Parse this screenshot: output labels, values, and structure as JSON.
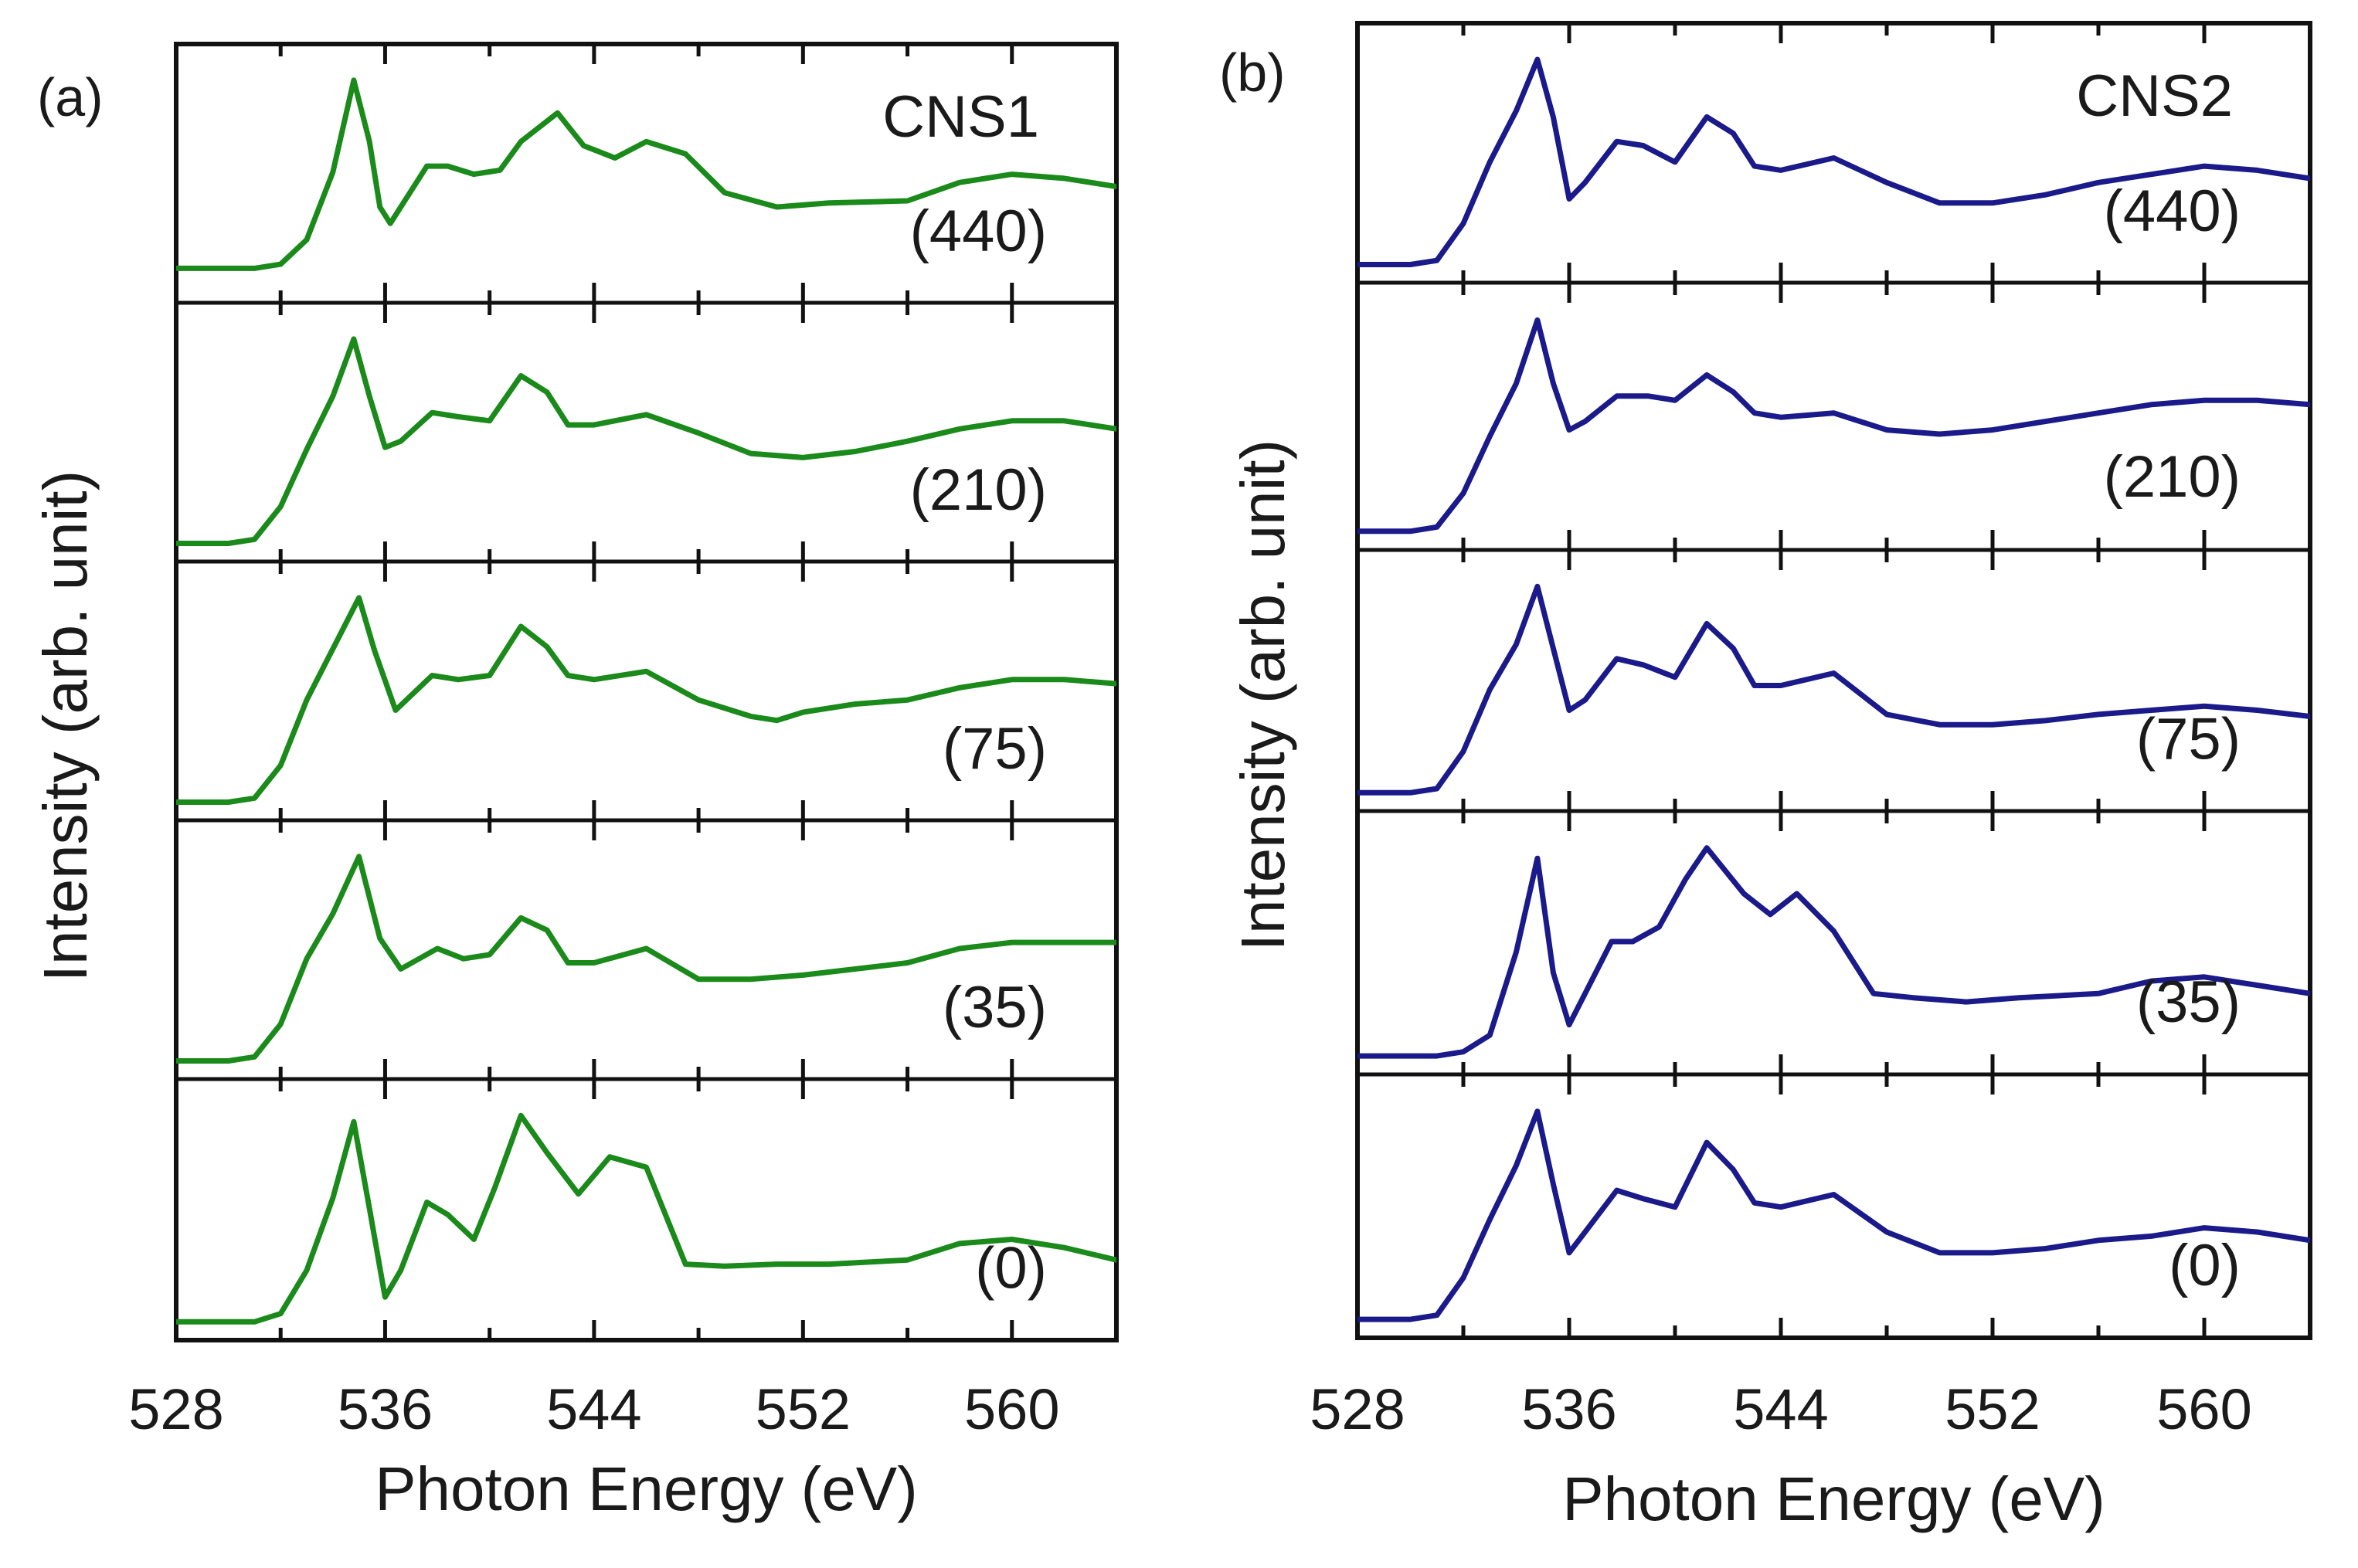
{
  "chart_data": [
    {
      "type": "line",
      "panel_label": "(a)",
      "sample": "CNS1",
      "xlabel": "Photon Energy (eV)",
      "ylabel": "Intensity (arb. unit)",
      "xlim": [
        528,
        564
      ],
      "xticks": [
        528,
        536,
        544,
        552,
        560
      ],
      "minor_tick_step": 4,
      "color": "#1a8a1a",
      "stacked": true,
      "y_normalized": true,
      "series": [
        {
          "name": "(440)",
          "x": [
            528,
            531,
            532,
            533,
            534,
            534.8,
            535.4,
            535.8,
            536.2,
            536.8,
            537.6,
            538.4,
            539.4,
            540.4,
            541.2,
            542.6,
            543.6,
            544.8,
            546,
            547.5,
            549,
            551,
            553,
            556,
            558,
            560,
            562,
            564
          ],
          "y": [
            0.08,
            0.08,
            0.1,
            0.22,
            0.55,
            1.0,
            0.7,
            0.38,
            0.3,
            0.42,
            0.58,
            0.58,
            0.54,
            0.56,
            0.7,
            0.84,
            0.68,
            0.62,
            0.7,
            0.64,
            0.45,
            0.38,
            0.4,
            0.41,
            0.5,
            0.54,
            0.52,
            0.48
          ]
        },
        {
          "name": "(210)",
          "x": [
            528,
            530,
            531,
            532,
            533,
            534,
            534.8,
            535.4,
            536,
            536.6,
            537.8,
            538.8,
            540,
            541.2,
            542.2,
            543,
            544,
            546,
            548,
            550,
            552,
            554,
            556,
            558,
            560,
            562,
            564
          ],
          "y": [
            0.0,
            0.0,
            0.02,
            0.18,
            0.46,
            0.72,
            1.0,
            0.72,
            0.47,
            0.5,
            0.64,
            0.62,
            0.6,
            0.82,
            0.74,
            0.58,
            0.58,
            0.63,
            0.54,
            0.44,
            0.42,
            0.45,
            0.5,
            0.56,
            0.6,
            0.6,
            0.56
          ]
        },
        {
          "name": "(75)",
          "x": [
            528,
            530,
            531,
            532,
            533,
            534,
            535,
            535.6,
            536.4,
            537.8,
            538.8,
            540,
            541.2,
            542.2,
            543,
            544,
            546,
            548,
            550,
            551,
            552,
            554,
            556,
            558,
            560,
            562,
            564
          ],
          "y": [
            0.0,
            0.0,
            0.02,
            0.18,
            0.5,
            0.75,
            1.0,
            0.74,
            0.45,
            0.62,
            0.6,
            0.62,
            0.86,
            0.76,
            0.62,
            0.6,
            0.64,
            0.5,
            0.42,
            0.4,
            0.44,
            0.48,
            0.5,
            0.56,
            0.6,
            0.6,
            0.58
          ]
        },
        {
          "name": "(35)",
          "x": [
            528,
            530,
            531,
            532,
            533,
            534,
            535,
            535.8,
            536.6,
            538,
            539,
            540,
            541.2,
            542.2,
            543,
            544,
            546,
            548,
            550,
            552,
            554,
            556,
            558,
            560,
            562,
            564
          ],
          "y": [
            0.0,
            0.0,
            0.02,
            0.18,
            0.5,
            0.72,
            1.0,
            0.6,
            0.45,
            0.55,
            0.5,
            0.52,
            0.7,
            0.64,
            0.48,
            0.48,
            0.55,
            0.4,
            0.4,
            0.42,
            0.45,
            0.48,
            0.55,
            0.58,
            0.58,
            0.58
          ]
        },
        {
          "name": "(0)",
          "x": [
            528,
            531,
            532,
            533,
            534,
            534.8,
            535.4,
            536,
            536.6,
            537.6,
            538.4,
            539.4,
            540.2,
            541.2,
            542.2,
            543.4,
            544.6,
            546,
            547.5,
            549,
            551,
            553,
            556,
            558,
            560,
            562,
            564
          ],
          "y": [
            0.0,
            0.0,
            0.04,
            0.25,
            0.6,
            0.97,
            0.55,
            0.12,
            0.25,
            0.58,
            0.52,
            0.4,
            0.65,
            1.0,
            0.82,
            0.62,
            0.8,
            0.75,
            0.28,
            0.27,
            0.28,
            0.28,
            0.3,
            0.38,
            0.4,
            0.36,
            0.3
          ]
        }
      ]
    },
    {
      "type": "line",
      "panel_label": "(b)",
      "sample": "CNS2",
      "xlabel": "Photon Energy (eV)",
      "ylabel": "Intensity (arb. unit)",
      "xlim": [
        528,
        564
      ],
      "xticks": [
        528,
        536,
        544,
        552,
        560
      ],
      "minor_tick_step": 4,
      "color": "#1a1a8a",
      "stacked": true,
      "y_normalized": true,
      "series": [
        {
          "name": "(440)",
          "x": [
            528,
            530,
            531,
            532,
            533,
            534,
            534.8,
            535.4,
            536,
            536.6,
            537.8,
            538.8,
            540,
            541.2,
            542.2,
            543,
            544,
            546,
            548,
            550,
            552,
            554,
            556,
            558,
            560,
            562,
            564
          ],
          "y": [
            0.0,
            0.0,
            0.02,
            0.2,
            0.5,
            0.75,
            1.0,
            0.72,
            0.32,
            0.4,
            0.6,
            0.58,
            0.5,
            0.72,
            0.64,
            0.48,
            0.46,
            0.52,
            0.4,
            0.3,
            0.3,
            0.34,
            0.4,
            0.44,
            0.48,
            0.46,
            0.42
          ]
        },
        {
          "name": "(210)",
          "x": [
            528,
            530,
            531,
            532,
            533,
            534,
            534.8,
            535.4,
            536,
            536.6,
            537.8,
            539,
            540,
            541.2,
            542.2,
            543,
            544,
            546,
            548,
            550,
            552,
            554,
            556,
            558,
            560,
            562,
            564
          ],
          "y": [
            0.0,
            0.0,
            0.02,
            0.18,
            0.45,
            0.7,
            1.0,
            0.7,
            0.48,
            0.52,
            0.64,
            0.64,
            0.62,
            0.74,
            0.66,
            0.56,
            0.54,
            0.56,
            0.48,
            0.46,
            0.48,
            0.52,
            0.56,
            0.6,
            0.62,
            0.62,
            0.6
          ]
        },
        {
          "name": "(75)",
          "x": [
            528,
            530,
            531,
            532,
            533,
            534,
            534.8,
            535.4,
            536,
            536.6,
            537.8,
            538.8,
            540,
            541.2,
            542.2,
            543,
            544,
            546,
            548,
            550,
            552,
            554,
            556,
            558,
            560,
            562,
            564
          ],
          "y": [
            0.0,
            0.0,
            0.02,
            0.2,
            0.5,
            0.72,
            1.0,
            0.7,
            0.4,
            0.45,
            0.65,
            0.62,
            0.56,
            0.82,
            0.7,
            0.52,
            0.52,
            0.58,
            0.38,
            0.33,
            0.33,
            0.35,
            0.38,
            0.4,
            0.42,
            0.4,
            0.37
          ]
        },
        {
          "name": "(35)",
          "x": [
            528,
            531,
            532,
            533,
            534,
            534.8,
            535.4,
            536,
            536.6,
            537.6,
            538.4,
            539.4,
            540.4,
            541.2,
            542.6,
            543.6,
            544.6,
            546,
            547.5,
            549,
            551,
            553,
            556,
            558,
            560,
            562,
            564
          ],
          "y": [
            0.0,
            0.0,
            0.02,
            0.1,
            0.5,
            0.95,
            0.4,
            0.15,
            0.3,
            0.55,
            0.55,
            0.62,
            0.85,
            1.0,
            0.78,
            0.68,
            0.78,
            0.6,
            0.3,
            0.28,
            0.26,
            0.28,
            0.3,
            0.36,
            0.38,
            0.34,
            0.3
          ]
        },
        {
          "name": "(0)",
          "x": [
            528,
            530,
            531,
            532,
            533,
            534,
            534.8,
            535.4,
            536,
            536.6,
            537.8,
            538.8,
            540,
            541.2,
            542.2,
            543,
            544,
            546,
            548,
            550,
            552,
            554,
            556,
            558,
            560,
            562,
            564
          ],
          "y": [
            0.0,
            0.0,
            0.02,
            0.2,
            0.48,
            0.74,
            1.0,
            0.65,
            0.32,
            0.42,
            0.62,
            0.58,
            0.54,
            0.85,
            0.72,
            0.56,
            0.54,
            0.6,
            0.42,
            0.32,
            0.32,
            0.34,
            0.38,
            0.4,
            0.44,
            0.42,
            0.38
          ]
        }
      ]
    }
  ]
}
